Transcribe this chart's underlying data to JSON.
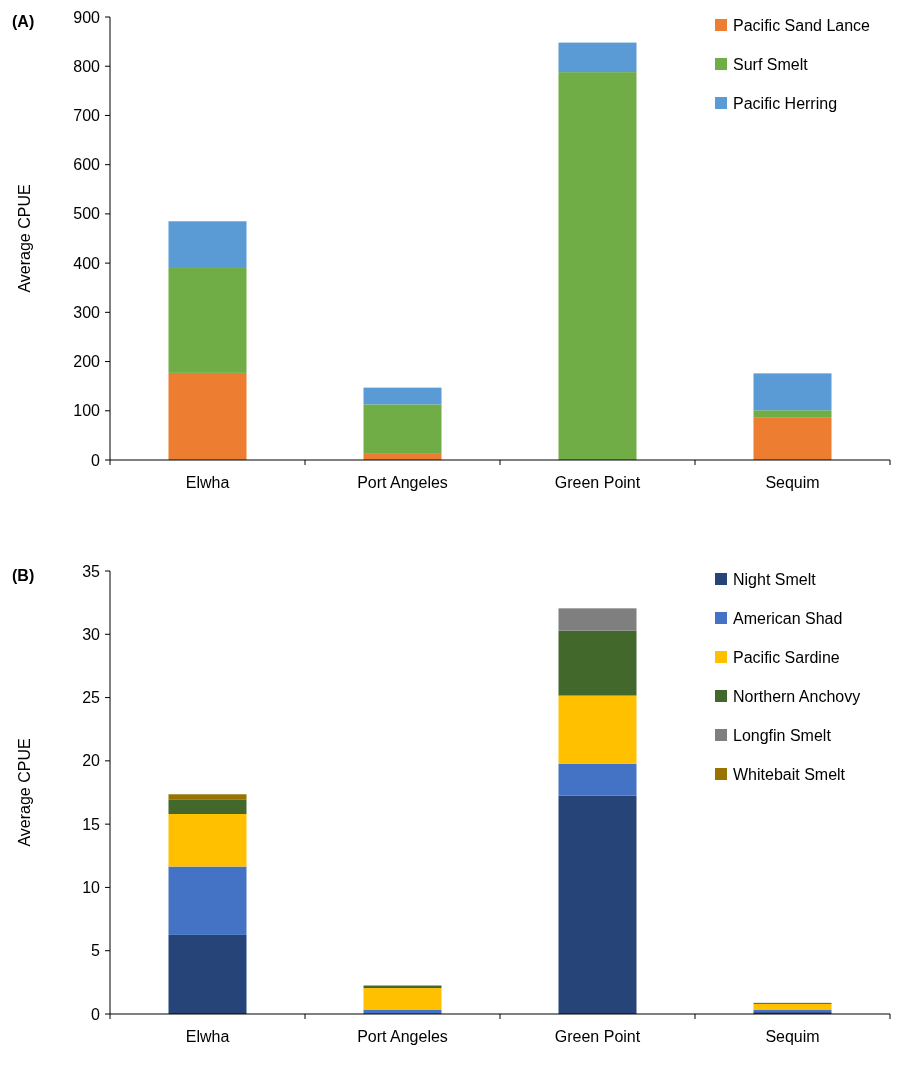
{
  "chart_data": [
    {
      "type": "bar",
      "title": "(A)",
      "ylabel": "Average CPUE",
      "stacked": true,
      "categories": [
        "Elwha",
        "Port Angeles",
        "Green Point",
        "Sequim"
      ],
      "series": [
        {
          "name": "Pacific Sand Lance",
          "color": "#ed7d31",
          "values": [
            177,
            14,
            null,
            87
          ]
        },
        {
          "name": "Surf Smelt",
          "color": "#70ad47",
          "values": [
            215,
            99,
            788,
            14
          ]
        },
        {
          "name": "Pacific Herring",
          "color": "#5b9bd5",
          "values": [
            93,
            34,
            60,
            75
          ]
        }
      ],
      "ylim": [
        0,
        900
      ],
      "yticks": [
        0,
        100,
        200,
        300,
        400,
        500,
        600,
        700,
        800,
        900
      ],
      "grid": false,
      "legend": "top right"
    },
    {
      "type": "bar",
      "title": "(B)",
      "ylabel": "Average CPUE",
      "stacked": true,
      "categories": [
        "Elwha",
        "Port Angeles",
        "Green Point",
        "Sequim"
      ],
      "series": [
        {
          "name": "Night Smelt",
          "color": "#264478",
          "values": [
            6.25,
            null,
            17.26,
            0.15
          ]
        },
        {
          "name": "American Shad",
          "color": "#4472c4",
          "values": [
            5.4,
            0.35,
            2.5,
            0.2
          ]
        },
        {
          "name": "Pacific Sardine",
          "color": "#ffc000",
          "values": [
            4.15,
            1.7,
            5.4,
            0.45
          ]
        },
        {
          "name": "Northern Anchovy",
          "color": "#43682b",
          "values": [
            1.16,
            0.2,
            5.13,
            0.08
          ]
        },
        {
          "name": "Longfin Smelt",
          "color": "#7f7f7f",
          "values": [
            0,
            0,
            1.76,
            0
          ]
        },
        {
          "name": "Whitebait Smelt",
          "color": "#997300",
          "values": [
            0.4,
            0,
            0,
            0
          ]
        }
      ],
      "ylim": [
        0,
        35
      ],
      "yticks": [
        0,
        5,
        10,
        15,
        20,
        25,
        30,
        35
      ],
      "grid": false,
      "legend": "top right"
    }
  ]
}
